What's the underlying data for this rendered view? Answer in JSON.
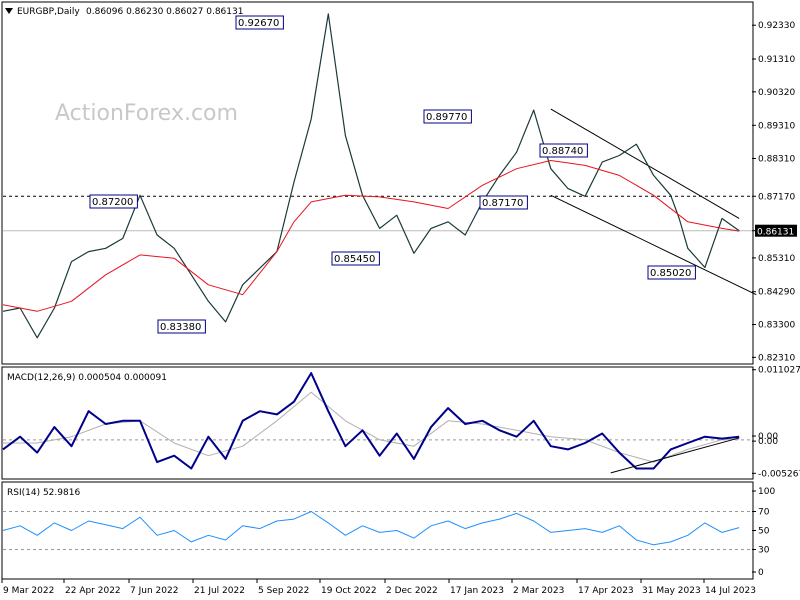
{
  "header": {
    "symbol": "EURGBP,Daily",
    "ohlc": "0.86096 0.86230 0.86027 0.86131",
    "arrow_icon": "triangle-down-icon"
  },
  "watermark": "ActionForex.com",
  "colors": {
    "price": "#1a3a3a",
    "ma": "#e8141e",
    "channel": "#000000",
    "macd": "#00008b",
    "signal": "#b0b0b0",
    "rsi": "#1e90ff",
    "label_border": "#00008b",
    "current_box": "#000000"
  },
  "chart_data": [
    {
      "type": "line",
      "name": "price-panel",
      "ylim": [
        0.8214,
        0.93
      ],
      "y_ticks": [
        "0.92330",
        "0.91310",
        "0.90320",
        "0.89310",
        "0.88310",
        "0.87170",
        "0.86131",
        "0.85310",
        "0.84290",
        "0.83300",
        "0.82310"
      ],
      "series": [
        {
          "name": "",
          "x": [
            0,
            8,
            16,
            24,
            32,
            40,
            48,
            56,
            64,
            72,
            80,
            88,
            96,
            104,
            112,
            120,
            128,
            136,
            144,
            152,
            160,
            168,
            176,
            184,
            192,
            200,
            208,
            216,
            224,
            232,
            240,
            248,
            256,
            264,
            272,
            280,
            288,
            296,
            304,
            312,
            316,
            320,
            328,
            336,
            344
          ],
          "values": [
            0.837,
            0.838,
            0.829,
            0.838,
            0.852,
            0.855,
            0.856,
            0.859,
            0.872,
            0.86,
            0.856,
            0.848,
            0.84,
            0.8338,
            0.845,
            0.85,
            0.855,
            0.876,
            0.895,
            0.9267,
            0.89,
            0.872,
            0.862,
            0.866,
            0.8545,
            0.862,
            0.864,
            0.86,
            0.87,
            0.878,
            0.885,
            0.8977,
            0.88,
            0.874,
            0.8717,
            0.882,
            0.884,
            0.8874,
            0.878,
            0.872,
            0.865,
            0.856,
            0.8502,
            0.865,
            0.8613
          ]
        },
        {
          "name": "",
          "x": [
            0,
            16,
            32,
            48,
            64,
            80,
            96,
            112,
            128,
            136,
            144,
            160,
            176,
            192,
            208,
            224,
            240,
            256,
            272,
            288,
            304,
            320,
            336,
            344
          ],
          "values": [
            0.839,
            0.837,
            0.84,
            0.848,
            0.854,
            0.853,
            0.845,
            0.842,
            0.855,
            0.864,
            0.87,
            0.872,
            0.8715,
            0.87,
            0.868,
            0.875,
            0.88,
            0.8825,
            0.881,
            0.878,
            0.872,
            0.864,
            0.862,
            0.8612
          ]
        }
      ],
      "annotations": [
        "0.92670",
        "0.89770",
        "0.88740",
        "0.87200",
        "0.87170",
        "0.85450",
        "0.83380",
        "0.85020"
      ],
      "reference_line": 0.8717,
      "current_value": "0.86131",
      "trend_channel": {
        "upper": [
          [
            256,
            0.898
          ],
          [
            344,
            0.865
          ]
        ],
        "lower": [
          [
            256,
            0.872
          ],
          [
            352,
            0.842
          ]
        ]
      }
    },
    {
      "type": "line",
      "name": "macd-panel",
      "title": "MACD(12,26,9) 0.000504 0.000091",
      "ylim": [
        -0.006,
        0.0113
      ],
      "y_ticks": [
        "0.011027",
        "0.00",
        "0.00",
        "-0.005267"
      ],
      "series": [
        {
          "name": "",
          "x": [
            0,
            8,
            16,
            24,
            32,
            40,
            48,
            56,
            64,
            72,
            80,
            88,
            96,
            104,
            112,
            120,
            128,
            136,
            144,
            152,
            160,
            168,
            176,
            184,
            192,
            200,
            208,
            216,
            224,
            232,
            240,
            248,
            256,
            264,
            272,
            280,
            288,
            296,
            304,
            312,
            320,
            328,
            336,
            344
          ],
          "values": [
            -0.0015,
            0.0005,
            -0.002,
            0.002,
            -0.001,
            0.0045,
            0.0025,
            0.003,
            0.003,
            -0.0035,
            -0.0025,
            -0.0045,
            0.0005,
            -0.003,
            0.003,
            0.0045,
            0.004,
            0.006,
            0.0105,
            0.0045,
            -0.001,
            0.0015,
            -0.0025,
            0.001,
            -0.003,
            0.002,
            0.005,
            0.0025,
            0.003,
            0.0015,
            0.0005,
            0.003,
            -0.001,
            -0.0015,
            -0.0005,
            0.001,
            -0.002,
            -0.0045,
            -0.0045,
            -0.0015,
            -0.0005,
            0.0005,
            0.0002,
            0.0005
          ]
        },
        {
          "name": "",
          "x": [
            0,
            16,
            32,
            48,
            64,
            80,
            96,
            112,
            128,
            144,
            160,
            176,
            192,
            208,
            224,
            240,
            256,
            272,
            288,
            304,
            320,
            336,
            344
          ],
          "values": [
            -0.0005,
            -0.0005,
            0.0005,
            0.0025,
            0.003,
            -0.0005,
            -0.0025,
            -0.001,
            0.003,
            0.0075,
            0.003,
            0.0,
            -0.001,
            0.003,
            0.0025,
            0.0015,
            0.0005,
            0.0,
            -0.002,
            -0.0035,
            -0.0015,
            0.0,
            0.0001
          ]
        }
      ]
    },
    {
      "type": "line",
      "name": "rsi-panel",
      "title": "RSI(14) 52.9816",
      "ylim": [
        0,
        100
      ],
      "y_ticks": [
        "100",
        "70",
        "50",
        "30",
        "0"
      ],
      "series": [
        {
          "name": "",
          "x": [
            0,
            8,
            16,
            24,
            32,
            40,
            48,
            56,
            64,
            72,
            80,
            88,
            96,
            104,
            112,
            120,
            128,
            136,
            144,
            152,
            160,
            168,
            176,
            184,
            192,
            200,
            208,
            216,
            224,
            232,
            240,
            248,
            256,
            264,
            272,
            280,
            288,
            296,
            304,
            312,
            320,
            328,
            336,
            344
          ],
          "values": [
            50,
            55,
            45,
            58,
            50,
            60,
            56,
            52,
            64,
            45,
            50,
            38,
            45,
            40,
            55,
            52,
            60,
            62,
            70,
            58,
            45,
            55,
            48,
            50,
            42,
            55,
            60,
            52,
            58,
            62,
            68,
            60,
            48,
            50,
            52,
            48,
            55,
            40,
            35,
            38,
            45,
            58,
            48,
            53
          ]
        }
      ]
    }
  ],
  "x_axis": [
    "9 Mar 2022",
    "22 Apr 2022",
    "7 Jun 2022",
    "21 Jul 2022",
    "5 Sep 2022",
    "19 Oct 2022",
    "2 Dec 2022",
    "17 Jan 2023",
    "2 Mar 2023",
    "17 Apr 2023",
    "31 May 2023",
    "14 Jul 2023"
  ]
}
